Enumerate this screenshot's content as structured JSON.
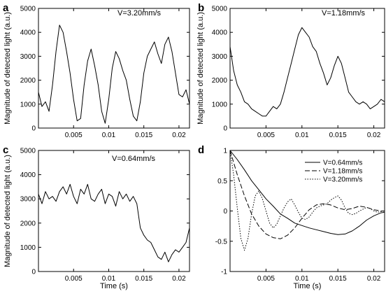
{
  "figure": {
    "ylabel": "Magnitude of detected light (a.u.)",
    "xlabel": "Time",
    "xunit": "(s)"
  },
  "chart_data": [
    {
      "panel": "a",
      "type": "line",
      "annotation": "V=3.20mm/s",
      "xlim": [
        0,
        0.0215
      ],
      "ylim": [
        0,
        5000
      ],
      "xticks": [
        "0.005",
        "0.01",
        "0.015",
        "0.02"
      ],
      "xtick_values": [
        0.005,
        0.01,
        0.015,
        0.02
      ],
      "yticks": [
        "0",
        "1000",
        "2000",
        "3000",
        "4000",
        "5000"
      ],
      "ytick_values": [
        0,
        1000,
        2000,
        3000,
        4000,
        5000
      ],
      "series": [
        {
          "x": [
            0.0,
            0.0005,
            0.001,
            0.0015,
            0.002,
            0.0025,
            0.003,
            0.0035,
            0.004,
            0.0045,
            0.005,
            0.0055,
            0.006,
            0.0065,
            0.007,
            0.0075,
            0.008,
            0.0085,
            0.009,
            0.0095,
            0.01,
            0.0105,
            0.011,
            0.0115,
            0.012,
            0.0125,
            0.013,
            0.0135,
            0.014,
            0.0145,
            0.015,
            0.0155,
            0.016,
            0.0165,
            0.017,
            0.0175,
            0.018,
            0.0185,
            0.019,
            0.0195,
            0.02,
            0.0205,
            0.021,
            0.0215
          ],
          "y": [
            1500,
            900,
            1100,
            700,
            1800,
            3200,
            4300,
            4000,
            3200,
            2300,
            1200,
            300,
            400,
            1800,
            2800,
            3300,
            2600,
            1800,
            700,
            200,
            1200,
            2500,
            3200,
            2900,
            2400,
            2000,
            1200,
            500,
            300,
            1100,
            2300,
            3000,
            3300,
            3600,
            3100,
            2700,
            3500,
            3800,
            3200,
            2300,
            1400,
            1300,
            1600,
            1000
          ]
        }
      ]
    },
    {
      "panel": "b",
      "type": "line",
      "annotation": "V=1.18mm/s",
      "xlim": [
        0,
        0.0215
      ],
      "ylim": [
        0,
        5000
      ],
      "xticks": [
        "0.005",
        "0.01",
        "0.015",
        "0.02"
      ],
      "xtick_values": [
        0.005,
        0.01,
        0.015,
        0.02
      ],
      "yticks": [
        "0",
        "1000",
        "2000",
        "3000",
        "4000",
        "5000"
      ],
      "ytick_values": [
        0,
        1000,
        2000,
        3000,
        4000,
        5000
      ],
      "series": [
        {
          "x": [
            0.0,
            0.0005,
            0.001,
            0.0015,
            0.002,
            0.0025,
            0.003,
            0.0035,
            0.004,
            0.0045,
            0.005,
            0.0055,
            0.006,
            0.0065,
            0.007,
            0.0075,
            0.008,
            0.0085,
            0.009,
            0.0095,
            0.01,
            0.0105,
            0.011,
            0.0115,
            0.012,
            0.0125,
            0.013,
            0.0135,
            0.014,
            0.0145,
            0.015,
            0.0155,
            0.016,
            0.0165,
            0.017,
            0.0175,
            0.018,
            0.0185,
            0.019,
            0.0195,
            0.02,
            0.0205,
            0.021,
            0.0215
          ],
          "y": [
            3400,
            2400,
            1800,
            1500,
            1100,
            1000,
            800,
            700,
            600,
            500,
            500,
            700,
            900,
            800,
            1000,
            1500,
            2100,
            2700,
            3300,
            3900,
            4200,
            4000,
            3800,
            3400,
            3200,
            2700,
            2300,
            1800,
            2100,
            2600,
            3000,
            2700,
            2100,
            1500,
            1300,
            1100,
            1000,
            1100,
            1000,
            800,
            900,
            1000,
            1200,
            1100
          ]
        }
      ]
    },
    {
      "panel": "c",
      "type": "line",
      "annotation": "V=0.64mm/s",
      "xlim": [
        0,
        0.0215
      ],
      "ylim": [
        0,
        5000
      ],
      "xticks": [
        "0.005",
        "0.01",
        "0.015",
        "0.02"
      ],
      "xtick_values": [
        0.005,
        0.01,
        0.015,
        0.02
      ],
      "yticks": [
        "0",
        "1000",
        "2000",
        "3000",
        "4000",
        "5000"
      ],
      "ytick_values": [
        0,
        1000,
        2000,
        3000,
        4000,
        5000
      ],
      "series": [
        {
          "x": [
            0.0,
            0.0005,
            0.001,
            0.0015,
            0.002,
            0.0025,
            0.003,
            0.0035,
            0.004,
            0.0045,
            0.005,
            0.0055,
            0.006,
            0.0065,
            0.007,
            0.0075,
            0.008,
            0.0085,
            0.009,
            0.0095,
            0.01,
            0.0105,
            0.011,
            0.0115,
            0.012,
            0.0125,
            0.013,
            0.0135,
            0.014,
            0.0145,
            0.015,
            0.0155,
            0.016,
            0.0165,
            0.017,
            0.0175,
            0.018,
            0.0185,
            0.019,
            0.0195,
            0.02,
            0.0205,
            0.021,
            0.0215
          ],
          "y": [
            3200,
            2800,
            3300,
            3000,
            3100,
            2900,
            3300,
            3500,
            3200,
            3600,
            3100,
            2800,
            3400,
            3200,
            3600,
            3000,
            2900,
            3200,
            3400,
            2800,
            3200,
            3100,
            2700,
            3300,
            3000,
            3200,
            2900,
            3100,
            2800,
            1800,
            1500,
            1300,
            1200,
            900,
            600,
            500,
            800,
            400,
            700,
            900,
            800,
            1000,
            1200,
            1800
          ]
        }
      ]
    },
    {
      "panel": "d",
      "type": "line",
      "xlim": [
        0,
        0.0215
      ],
      "ylim": [
        -1,
        1
      ],
      "xticks": [
        "0.005",
        "0.01",
        "0.015",
        "0.02"
      ],
      "xtick_values": [
        0.005,
        0.01,
        0.015,
        0.02
      ],
      "yticks": [
        "-1",
        "-0.5",
        "0",
        "0.5",
        "1"
      ],
      "ytick_values": [
        -1,
        -0.5,
        0,
        0.5,
        1
      ],
      "legend": "top-right",
      "series": [
        {
          "name": "V=0.64mm/s",
          "style": "solid",
          "x": [
            0.0,
            0.001,
            0.002,
            0.003,
            0.004,
            0.005,
            0.006,
            0.007,
            0.008,
            0.009,
            0.01,
            0.011,
            0.012,
            0.013,
            0.014,
            0.015,
            0.016,
            0.017,
            0.018,
            0.019,
            0.02,
            0.021,
            0.0215
          ],
          "y": [
            1.0,
            0.85,
            0.68,
            0.5,
            0.35,
            0.2,
            0.08,
            -0.05,
            -0.12,
            -0.2,
            -0.24,
            -0.28,
            -0.31,
            -0.34,
            -0.37,
            -0.39,
            -0.38,
            -0.33,
            -0.25,
            -0.15,
            -0.08,
            -0.03,
            -0.02
          ]
        },
        {
          "name": "V=1.18mm/s",
          "style": "dashed",
          "x": [
            0.0,
            0.001,
            0.002,
            0.003,
            0.004,
            0.005,
            0.006,
            0.007,
            0.008,
            0.009,
            0.01,
            0.011,
            0.012,
            0.013,
            0.014,
            0.015,
            0.016,
            0.017,
            0.018,
            0.019,
            0.02,
            0.021,
            0.0215
          ],
          "y": [
            1.0,
            0.6,
            0.25,
            -0.05,
            -0.25,
            -0.38,
            -0.44,
            -0.46,
            -0.4,
            -0.28,
            -0.12,
            0.02,
            0.1,
            0.12,
            0.1,
            0.05,
            0.02,
            0.04,
            0.08,
            0.06,
            0.02,
            0.0,
            0.0
          ]
        },
        {
          "name": "V=3.20mm/s",
          "style": "dotted",
          "x": [
            0.0,
            0.0005,
            0.001,
            0.0015,
            0.002,
            0.0025,
            0.003,
            0.0035,
            0.004,
            0.0045,
            0.005,
            0.0055,
            0.006,
            0.0065,
            0.007,
            0.0075,
            0.008,
            0.0085,
            0.009,
            0.0095,
            0.01,
            0.0105,
            0.011,
            0.0115,
            0.012,
            0.0125,
            0.013,
            0.0135,
            0.014,
            0.0145,
            0.015,
            0.0155,
            0.016,
            0.0165,
            0.017,
            0.0175,
            0.018,
            0.0185,
            0.019,
            0.0195,
            0.02,
            0.0205,
            0.021,
            0.0215
          ],
          "y": [
            1.0,
            0.6,
            0.05,
            -0.45,
            -0.65,
            -0.45,
            -0.05,
            0.25,
            0.33,
            0.2,
            0.0,
            -0.2,
            -0.28,
            -0.22,
            -0.08,
            0.05,
            0.15,
            0.2,
            0.1,
            -0.02,
            -0.12,
            -0.14,
            -0.1,
            -0.02,
            0.05,
            0.08,
            0.1,
            0.12,
            0.18,
            0.22,
            0.25,
            0.18,
            0.05,
            -0.04,
            -0.06,
            -0.04,
            0.0,
            0.03,
            0.06,
            0.04,
            0.0,
            -0.02,
            -0.01,
            0.0
          ]
        }
      ]
    }
  ]
}
